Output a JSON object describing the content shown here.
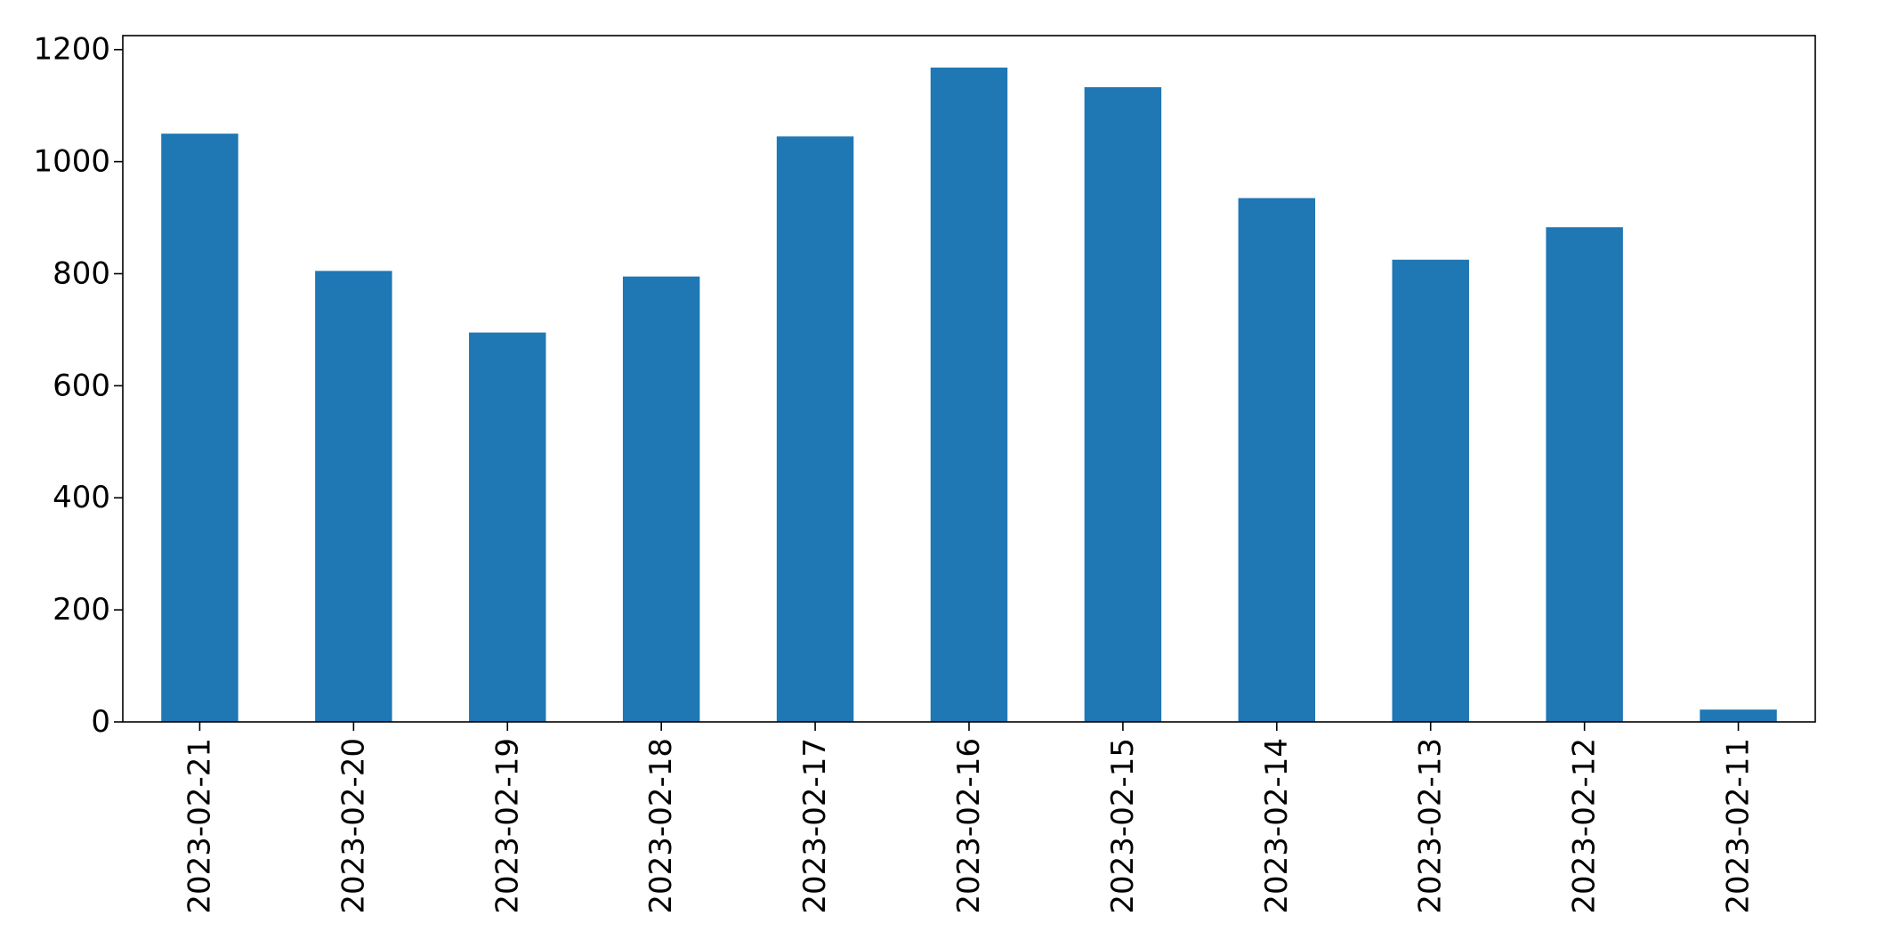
{
  "chart_data": {
    "type": "bar",
    "title": "",
    "xlabel": "",
    "ylabel": "",
    "categories": [
      "2023-02-21",
      "2023-02-20",
      "2023-02-19",
      "2023-02-18",
      "2023-02-17",
      "2023-02-16",
      "2023-02-15",
      "2023-02-14",
      "2023-02-13",
      "2023-02-12",
      "2023-02-11"
    ],
    "values": [
      1050,
      805,
      695,
      795,
      1045,
      1168,
      1133,
      935,
      825,
      883,
      22
    ],
    "ylim": [
      0,
      1225
    ],
    "yticks": [
      0,
      200,
      400,
      600,
      800,
      1000,
      1200
    ],
    "grid": false,
    "legend": false,
    "bar_color": "#1f77b4",
    "tick_label_orientation_x": "vertical"
  }
}
